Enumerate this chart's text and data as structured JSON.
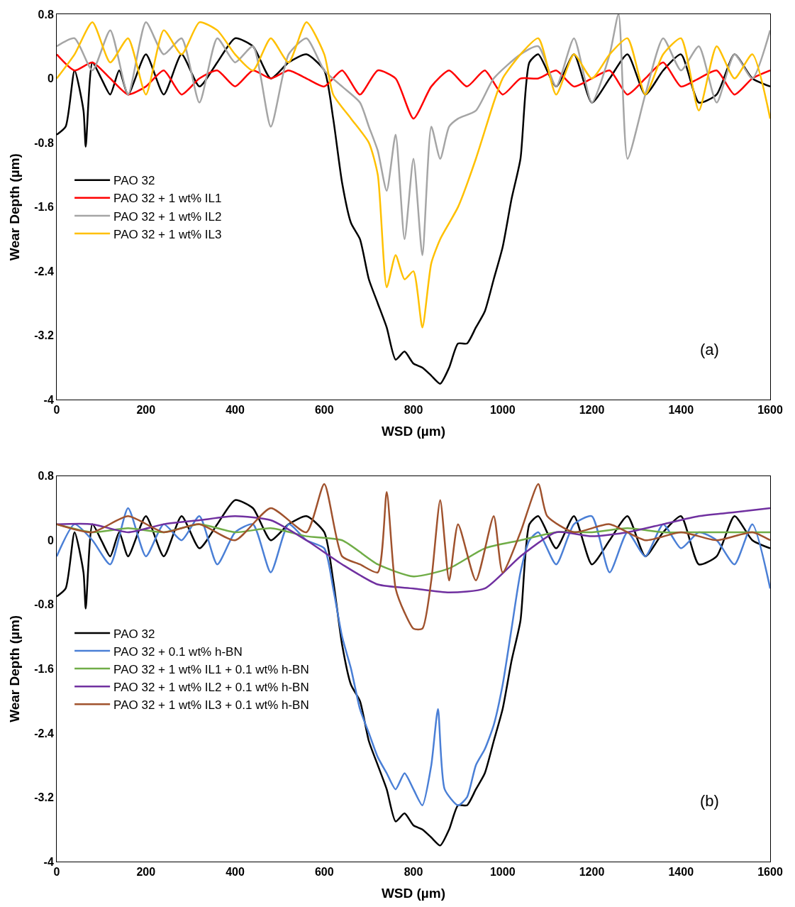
{
  "chart_data": [
    {
      "type": "line",
      "xlabel": "WSD (µm)",
      "ylabel": "Wear Depth (µm)",
      "xlim": [
        0,
        1600
      ],
      "ylim": [
        -4,
        0.8
      ],
      "xticks": [
        0,
        200,
        400,
        600,
        800,
        1000,
        1200,
        1400,
        1600
      ],
      "yticks": [
        0.8,
        0,
        -0.8,
        -1.6,
        -2.4,
        -3.2,
        -4
      ],
      "legend": "left",
      "annotations": [
        "(a)"
      ],
      "series": [
        {
          "name": "PAO 32",
          "color": "#000000",
          "x": [
            0,
            20,
            40,
            60,
            65,
            80,
            100,
            120,
            140,
            160,
            200,
            240,
            280,
            320,
            360,
            400,
            440,
            480,
            520,
            560,
            600,
            620,
            640,
            660,
            680,
            700,
            720,
            740,
            760,
            780,
            800,
            820,
            840,
            860,
            880,
            900,
            920,
            940,
            960,
            980,
            1000,
            1020,
            1040,
            1060,
            1080,
            1120,
            1160,
            1200,
            1240,
            1280,
            1320,
            1360,
            1400,
            1440,
            1480,
            1520,
            1560,
            1600
          ],
          "values": [
            -0.7,
            -0.6,
            0.1,
            -0.4,
            -0.85,
            0.2,
            0.0,
            -0.2,
            0.1,
            -0.2,
            0.3,
            -0.2,
            0.3,
            -0.1,
            0.2,
            0.5,
            0.4,
            0.0,
            0.2,
            0.3,
            0.1,
            -0.5,
            -1.3,
            -1.8,
            -2.0,
            -2.5,
            -2.8,
            -3.1,
            -3.5,
            -3.4,
            -3.55,
            -3.6,
            -3.7,
            -3.8,
            -3.6,
            -3.3,
            -3.3,
            -3.1,
            -2.9,
            -2.5,
            -2.1,
            -1.5,
            -1.0,
            0.2,
            0.3,
            -0.1,
            0.3,
            -0.3,
            0.0,
            0.3,
            -0.2,
            0.1,
            0.3,
            -0.3,
            -0.2,
            0.3,
            0.0,
            -0.1
          ]
        },
        {
          "name": "PAO 32 + 1 wt% IL1",
          "color": "#ff0000",
          "x": [
            0,
            40,
            80,
            120,
            160,
            200,
            240,
            280,
            320,
            360,
            400,
            440,
            480,
            520,
            560,
            600,
            640,
            680,
            720,
            760,
            800,
            840,
            880,
            920,
            960,
            1000,
            1040,
            1080,
            1120,
            1160,
            1200,
            1240,
            1280,
            1320,
            1360,
            1400,
            1440,
            1480,
            1520,
            1560,
            1600
          ],
          "values": [
            0.3,
            0.1,
            0.2,
            0.0,
            -0.2,
            -0.1,
            0.1,
            -0.2,
            0.0,
            0.1,
            -0.1,
            0.1,
            0.0,
            0.1,
            0.0,
            -0.1,
            0.1,
            -0.2,
            0.1,
            0.0,
            -0.5,
            -0.1,
            0.1,
            -0.1,
            0.1,
            -0.2,
            0.0,
            0.0,
            0.1,
            -0.1,
            0.0,
            0.1,
            -0.2,
            0.0,
            0.2,
            -0.1,
            0.0,
            0.1,
            -0.2,
            0.0,
            0.1
          ]
        },
        {
          "name": "PAO 32 + 1 wt% IL2",
          "color": "#a5a5a5",
          "x": [
            0,
            40,
            80,
            120,
            160,
            200,
            240,
            280,
            320,
            360,
            400,
            440,
            480,
            520,
            560,
            600,
            640,
            680,
            700,
            720,
            740,
            760,
            780,
            800,
            820,
            840,
            860,
            880,
            900,
            940,
            980,
            1040,
            1080,
            1120,
            1160,
            1200,
            1240,
            1260,
            1280,
            1320,
            1360,
            1400,
            1440,
            1480,
            1520,
            1560,
            1600
          ],
          "values": [
            0.4,
            0.5,
            0.1,
            0.6,
            -0.2,
            0.7,
            0.3,
            0.5,
            -0.3,
            0.5,
            0.2,
            0.4,
            -0.6,
            0.3,
            0.5,
            0.1,
            -0.1,
            -0.3,
            -0.6,
            -0.9,
            -1.4,
            -0.7,
            -2.0,
            -1.0,
            -2.2,
            -0.6,
            -1.0,
            -0.6,
            -0.5,
            -0.4,
            0.0,
            0.3,
            0.4,
            -0.1,
            0.5,
            -0.3,
            0.3,
            0.8,
            -1.0,
            -0.2,
            0.5,
            0.1,
            0.4,
            -0.3,
            0.3,
            0.0,
            0.6
          ]
        },
        {
          "name": "PAO 32 + 1 wt% IL3",
          "color": "#ffc000",
          "x": [
            0,
            40,
            80,
            120,
            160,
            200,
            240,
            280,
            320,
            360,
            400,
            440,
            480,
            520,
            560,
            600,
            620,
            660,
            700,
            720,
            740,
            760,
            780,
            800,
            820,
            840,
            860,
            880,
            900,
            940,
            980,
            1000,
            1040,
            1080,
            1120,
            1160,
            1200,
            1240,
            1280,
            1320,
            1360,
            1400,
            1440,
            1480,
            1520,
            1560,
            1600
          ],
          "values": [
            0.0,
            0.3,
            0.7,
            0.2,
            0.5,
            -0.2,
            0.6,
            0.3,
            0.7,
            0.6,
            0.3,
            0.1,
            0.5,
            0.2,
            0.7,
            0.3,
            -0.2,
            -0.5,
            -0.8,
            -1.2,
            -2.6,
            -2.2,
            -2.5,
            -2.4,
            -3.1,
            -2.3,
            -2.0,
            -1.8,
            -1.6,
            -1.0,
            -0.3,
            0.0,
            0.3,
            0.5,
            -0.2,
            0.3,
            0.0,
            0.3,
            0.5,
            -0.2,
            0.3,
            0.5,
            -0.4,
            0.4,
            0.0,
            0.3,
            -0.5
          ]
        }
      ]
    },
    {
      "type": "line",
      "xlabel": "WSD (µm)",
      "ylabel": "Wear Depth (µm)",
      "xlim": [
        0,
        1600
      ],
      "ylim": [
        -4,
        0.8
      ],
      "xticks": [
        0,
        200,
        400,
        600,
        800,
        1000,
        1200,
        1400,
        1600
      ],
      "yticks": [
        0.8,
        0,
        -0.8,
        -1.6,
        -2.4,
        -3.2,
        -4
      ],
      "legend": "left",
      "annotations": [
        "(b)"
      ],
      "series": [
        {
          "name": "PAO 32",
          "color": "#000000",
          "x": [
            0,
            20,
            40,
            60,
            65,
            80,
            100,
            120,
            140,
            160,
            200,
            240,
            280,
            320,
            360,
            400,
            440,
            480,
            520,
            560,
            600,
            620,
            640,
            660,
            680,
            700,
            720,
            740,
            760,
            780,
            800,
            820,
            840,
            860,
            880,
            900,
            920,
            940,
            960,
            980,
            1000,
            1020,
            1040,
            1060,
            1080,
            1120,
            1160,
            1200,
            1240,
            1280,
            1320,
            1360,
            1400,
            1440,
            1480,
            1520,
            1560,
            1600
          ],
          "values": [
            -0.7,
            -0.6,
            0.1,
            -0.4,
            -0.85,
            0.2,
            0.0,
            -0.2,
            0.1,
            -0.2,
            0.3,
            -0.2,
            0.3,
            -0.1,
            0.2,
            0.5,
            0.4,
            0.0,
            0.2,
            0.3,
            0.1,
            -0.5,
            -1.3,
            -1.8,
            -2.0,
            -2.5,
            -2.8,
            -3.1,
            -3.5,
            -3.4,
            -3.55,
            -3.6,
            -3.7,
            -3.8,
            -3.6,
            -3.3,
            -3.3,
            -3.1,
            -2.9,
            -2.5,
            -2.1,
            -1.5,
            -1.0,
            0.2,
            0.3,
            -0.1,
            0.3,
            -0.3,
            0.0,
            0.3,
            -0.2,
            0.1,
            0.3,
            -0.3,
            -0.2,
            0.3,
            0.0,
            -0.1
          ]
        },
        {
          "name": "PAO 32 + 0.1 wt% h-BN",
          "color": "#4a7fd6",
          "x": [
            0,
            40,
            80,
            120,
            160,
            200,
            240,
            280,
            320,
            360,
            400,
            440,
            480,
            520,
            560,
            600,
            620,
            640,
            660,
            680,
            700,
            720,
            740,
            760,
            780,
            800,
            820,
            840,
            855,
            870,
            900,
            920,
            940,
            960,
            980,
            1000,
            1020,
            1040,
            1060,
            1080,
            1120,
            1160,
            1200,
            1240,
            1280,
            1320,
            1360,
            1400,
            1440,
            1480,
            1520,
            1560,
            1600
          ],
          "values": [
            -0.2,
            0.2,
            0.0,
            -0.3,
            0.4,
            -0.2,
            0.2,
            0.0,
            0.3,
            -0.3,
            0.1,
            0.2,
            -0.4,
            0.2,
            0.0,
            -0.1,
            -0.6,
            -1.2,
            -1.6,
            -2.1,
            -2.4,
            -2.7,
            -2.9,
            -3.1,
            -2.9,
            -3.1,
            -3.3,
            -2.8,
            -2.1,
            -3.1,
            -3.3,
            -3.2,
            -2.8,
            -2.6,
            -2.3,
            -1.8,
            -1.1,
            -0.4,
            0.0,
            0.1,
            -0.3,
            0.2,
            0.3,
            -0.4,
            0.1,
            -0.2,
            0.2,
            -0.1,
            0.1,
            0.0,
            -0.3,
            0.2,
            -0.6
          ]
        },
        {
          "name": "PAO 32 + 1 wt% IL1 + 0.1 wt% h-BN",
          "color": "#70ad47",
          "x": [
            0,
            80,
            160,
            240,
            320,
            400,
            480,
            560,
            640,
            720,
            800,
            880,
            960,
            1040,
            1120,
            1200,
            1280,
            1360,
            1440,
            1520,
            1600
          ],
          "values": [
            0.2,
            0.1,
            0.15,
            0.1,
            0.2,
            0.1,
            0.15,
            0.05,
            0.0,
            -0.3,
            -0.45,
            -0.35,
            -0.1,
            0.0,
            0.1,
            0.1,
            0.15,
            0.1,
            0.1,
            0.1,
            0.1
          ]
        },
        {
          "name": "PAO 32 + 1 wt% IL2 + 0.1 wt% h-BN",
          "color": "#7030a0",
          "x": [
            0,
            80,
            160,
            240,
            320,
            400,
            480,
            560,
            640,
            720,
            800,
            880,
            960,
            1040,
            1120,
            1200,
            1280,
            1360,
            1440,
            1520,
            1600
          ],
          "values": [
            0.2,
            0.2,
            0.1,
            0.2,
            0.25,
            0.3,
            0.25,
            0.0,
            -0.3,
            -0.55,
            -0.6,
            -0.65,
            -0.6,
            -0.2,
            0.1,
            0.05,
            0.1,
            0.2,
            0.3,
            0.35,
            0.4
          ]
        },
        {
          "name": "PAO 32 + 1 wt% IL3 + 0.1 wt% h-BN",
          "color": "#a0522d",
          "x": [
            0,
            80,
            160,
            240,
            320,
            400,
            480,
            560,
            600,
            640,
            680,
            720,
            740,
            760,
            780,
            800,
            820,
            840,
            860,
            880,
            900,
            940,
            980,
            1000,
            1040,
            1080,
            1100,
            1160,
            1240,
            1320,
            1400,
            1480,
            1560,
            1600
          ],
          "values": [
            0.2,
            0.1,
            0.3,
            0.1,
            0.2,
            0.0,
            0.4,
            0.1,
            0.7,
            -0.2,
            -0.3,
            -0.4,
            0.6,
            -0.6,
            -0.9,
            -1.1,
            -1.1,
            -0.5,
            0.5,
            -0.5,
            0.2,
            -0.5,
            0.3,
            -0.4,
            0.1,
            0.7,
            0.3,
            0.1,
            0.2,
            0.0,
            0.1,
            0.0,
            0.1,
            0.0
          ]
        }
      ]
    }
  ]
}
